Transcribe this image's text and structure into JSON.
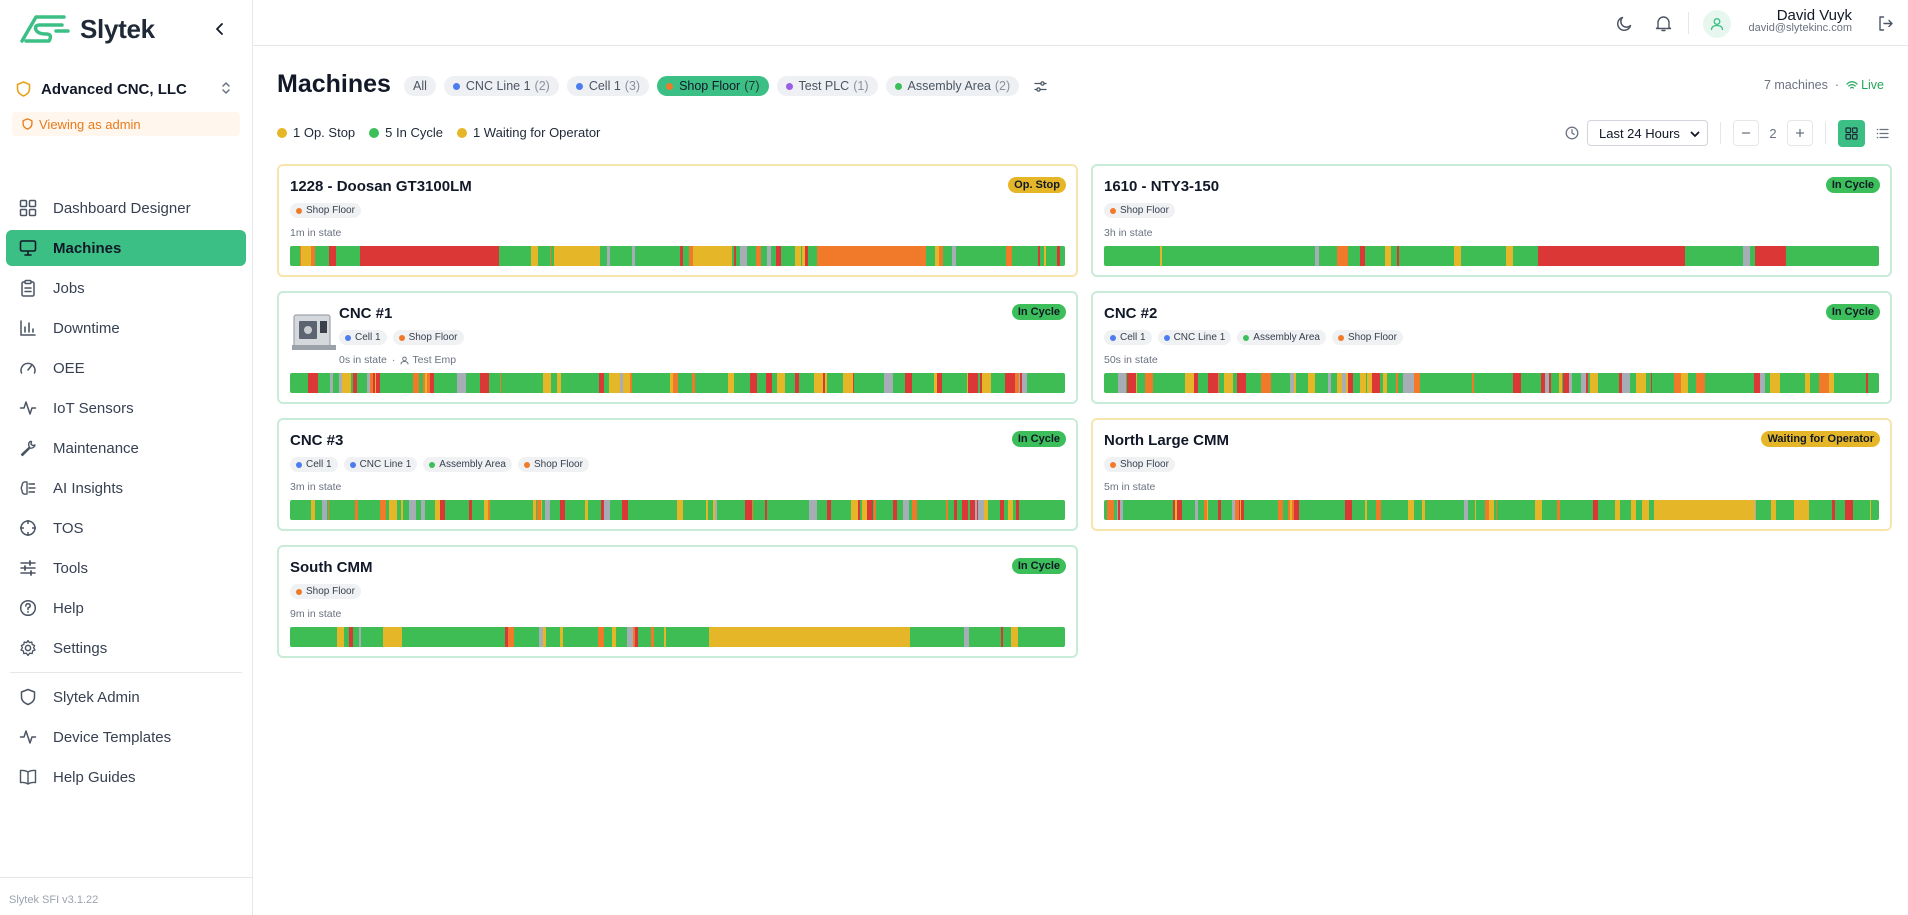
{
  "brand": {
    "name": "Slytek"
  },
  "org": {
    "name": "Advanced CNC, LLC",
    "admin_label": "Viewing as admin"
  },
  "nav": {
    "items": [
      {
        "label": "Dashboard Designer",
        "icon": "dashboard-icon"
      },
      {
        "label": "Machines",
        "icon": "monitor-icon",
        "active": true
      },
      {
        "label": "Jobs",
        "icon": "clipboard-icon"
      },
      {
        "label": "Downtime",
        "icon": "bar-chart-icon"
      },
      {
        "label": "OEE",
        "icon": "gauge-icon"
      },
      {
        "label": "IoT Sensors",
        "icon": "activity-icon"
      },
      {
        "label": "Maintenance",
        "icon": "wrench-icon"
      },
      {
        "label": "AI Insights",
        "icon": "brain-icon"
      },
      {
        "label": "TOS",
        "icon": "target-icon"
      },
      {
        "label": "Tools",
        "icon": "sliders-icon"
      },
      {
        "label": "Help",
        "icon": "help-icon"
      },
      {
        "label": "Settings",
        "icon": "gear-icon"
      }
    ],
    "admin_items": [
      {
        "label": "Slytek Admin",
        "icon": "shield-icon"
      },
      {
        "label": "Device Templates",
        "icon": "activity-icon"
      },
      {
        "label": "Help Guides",
        "icon": "book-icon"
      }
    ]
  },
  "version": "Slytek SFI v3.1.22",
  "user": {
    "name": "David Vuyk",
    "email": "david@slytekinc.com"
  },
  "page": {
    "title": "Machines",
    "filters": [
      {
        "label": "All",
        "count": "",
        "color": ""
      },
      {
        "label": "CNC Line 1",
        "count": "(2)",
        "color": "#4d7cf0"
      },
      {
        "label": "Cell 1",
        "count": "(3)",
        "color": "#4d7cf0"
      },
      {
        "label": "Shop Floor",
        "count": "(7)",
        "color": "#f07a2a",
        "active": true
      },
      {
        "label": "Test PLC",
        "count": "(1)",
        "color": "#9b5de5"
      },
      {
        "label": "Assembly Area",
        "count": "(2)",
        "color": "#3cbf5a"
      }
    ],
    "machine_count": "7 machines",
    "live_label": "Live",
    "status_summary": [
      {
        "label": "1 Op. Stop",
        "color": "#e5b728"
      },
      {
        "label": "5 In Cycle",
        "color": "#3cbf5a"
      },
      {
        "label": "1 Waiting for Operator",
        "color": "#e5b728"
      }
    ],
    "time_range": "Last 24 Hours",
    "columns": "2"
  },
  "colors": {
    "green": "#3fbd55",
    "red": "#dc3737",
    "orange": "#f07a2a",
    "yellow": "#e5b728",
    "gray": "#a7adb6"
  },
  "machines": [
    {
      "name": "1228 - Doosan GT3100LM",
      "status": "Op. Stop",
      "status_tone": "yellow",
      "tags": [
        {
          "label": "Shop Floor",
          "color": "#f07a2a"
        }
      ],
      "in_state": "1m in state"
    },
    {
      "name": "1610 - NTY3-150",
      "status": "In Cycle",
      "status_tone": "green",
      "tags": [
        {
          "label": "Shop Floor",
          "color": "#f07a2a"
        }
      ],
      "in_state": "3h in state"
    },
    {
      "name": "CNC #1",
      "status": "In Cycle",
      "status_tone": "green",
      "tags": [
        {
          "label": "Cell 1",
          "color": "#4d7cf0"
        },
        {
          "label": "Shop Floor",
          "color": "#f07a2a"
        }
      ],
      "in_state": "0s in state",
      "operator": "Test Emp",
      "has_image": true
    },
    {
      "name": "CNC #2",
      "status": "In Cycle",
      "status_tone": "green",
      "tags": [
        {
          "label": "Cell 1",
          "color": "#4d7cf0"
        },
        {
          "label": "CNC Line 1",
          "color": "#4d7cf0"
        },
        {
          "label": "Assembly Area",
          "color": "#3cbf5a"
        },
        {
          "label": "Shop Floor",
          "color": "#f07a2a"
        }
      ],
      "in_state": "50s in state"
    },
    {
      "name": "CNC #3",
      "status": "In Cycle",
      "status_tone": "green",
      "tags": [
        {
          "label": "Cell 1",
          "color": "#4d7cf0"
        },
        {
          "label": "CNC Line 1",
          "color": "#4d7cf0"
        },
        {
          "label": "Assembly Area",
          "color": "#3cbf5a"
        },
        {
          "label": "Shop Floor",
          "color": "#f07a2a"
        }
      ],
      "in_state": "3m in state"
    },
    {
      "name": "North Large CMM",
      "status": "Waiting for Operator",
      "status_tone": "yellow",
      "tags": [
        {
          "label": "Shop Floor",
          "color": "#f07a2a"
        }
      ],
      "in_state": "5m in state"
    },
    {
      "name": "South CMM",
      "status": "In Cycle",
      "status_tone": "green",
      "tags": [
        {
          "label": "Shop Floor",
          "color": "#f07a2a"
        }
      ],
      "in_state": "9m in state"
    }
  ]
}
